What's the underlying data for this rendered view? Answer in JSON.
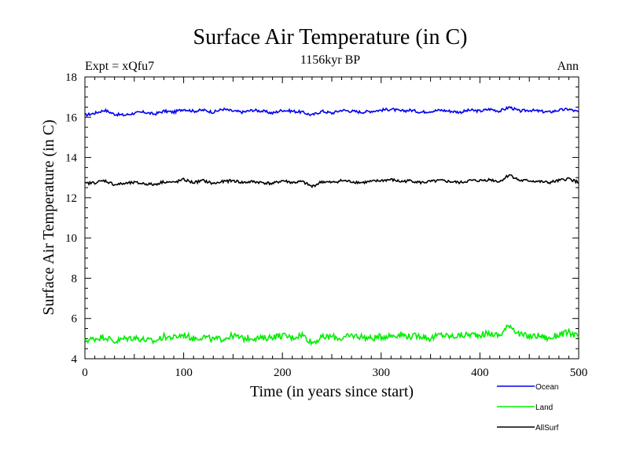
{
  "chart_data": {
    "type": "line",
    "title": "Surface Air Temperature (in C)",
    "subtitle": "1156kyr BP",
    "annotation_left": "Expt = xQfu7",
    "annotation_right": "Ann",
    "xlabel": "Time (in years since start)",
    "ylabel": "Surface Air Temperature (in C)",
    "xlim": [
      0,
      500
    ],
    "ylim": [
      4,
      18
    ],
    "xticks": [
      0,
      100,
      200,
      300,
      400,
      500
    ],
    "xtick_labels": [
      "0",
      "100",
      "200",
      "300",
      "400",
      "500"
    ],
    "yticks": [
      4,
      6,
      8,
      10,
      12,
      14,
      16,
      18
    ],
    "ytick_labels": [
      "4",
      "6",
      "8",
      "10",
      "12",
      "14",
      "16",
      "18"
    ],
    "grid": false,
    "legend_position": "bottom-right, below plot",
    "series": [
      {
        "name": "Ocean",
        "color": "#0000ee",
        "x": [
          0,
          10,
          20,
          30,
          40,
          50,
          60,
          70,
          80,
          90,
          100,
          110,
          120,
          130,
          140,
          150,
          160,
          170,
          180,
          190,
          200,
          210,
          220,
          230,
          240,
          250,
          260,
          270,
          280,
          290,
          300,
          310,
          320,
          330,
          340,
          350,
          360,
          370,
          380,
          390,
          400,
          410,
          420,
          430,
          440,
          450,
          460,
          470,
          480,
          490,
          500
        ],
        "values": [
          16.1,
          16.2,
          16.35,
          16.15,
          16.1,
          16.2,
          16.25,
          16.15,
          16.3,
          16.25,
          16.4,
          16.3,
          16.35,
          16.25,
          16.4,
          16.3,
          16.25,
          16.35,
          16.3,
          16.2,
          16.35,
          16.3,
          16.25,
          16.1,
          16.3,
          16.2,
          16.35,
          16.3,
          16.25,
          16.3,
          16.35,
          16.4,
          16.3,
          16.35,
          16.25,
          16.3,
          16.35,
          16.3,
          16.25,
          16.35,
          16.3,
          16.4,
          16.3,
          16.5,
          16.3,
          16.35,
          16.3,
          16.25,
          16.35,
          16.4,
          16.25
        ]
      },
      {
        "name": "Land",
        "color": "#00ee00",
        "x": [
          0,
          10,
          20,
          30,
          40,
          50,
          60,
          70,
          80,
          90,
          100,
          110,
          120,
          130,
          140,
          150,
          160,
          170,
          180,
          190,
          200,
          210,
          220,
          230,
          240,
          250,
          260,
          270,
          280,
          290,
          300,
          310,
          320,
          330,
          340,
          350,
          360,
          370,
          380,
          390,
          400,
          410,
          420,
          430,
          440,
          450,
          460,
          470,
          480,
          490,
          500
        ],
        "values": [
          4.9,
          5.0,
          5.1,
          4.85,
          5.0,
          5.05,
          4.95,
          4.85,
          5.1,
          5.05,
          5.2,
          5.0,
          5.1,
          4.95,
          5.0,
          5.15,
          5.0,
          5.05,
          5.0,
          5.1,
          5.15,
          5.05,
          5.2,
          4.8,
          5.05,
          5.1,
          5.0,
          5.15,
          5.1,
          5.0,
          5.1,
          5.15,
          5.2,
          5.1,
          5.15,
          5.0,
          5.2,
          5.1,
          5.15,
          5.2,
          5.2,
          5.25,
          5.15,
          5.7,
          5.2,
          5.1,
          5.15,
          5.0,
          5.2,
          5.3,
          5.1
        ]
      },
      {
        "name": "AllSurf",
        "color": "#000000",
        "x": [
          0,
          10,
          20,
          30,
          40,
          50,
          60,
          70,
          80,
          90,
          100,
          110,
          120,
          130,
          140,
          150,
          160,
          170,
          180,
          190,
          200,
          210,
          220,
          230,
          240,
          250,
          260,
          270,
          280,
          290,
          300,
          310,
          320,
          330,
          340,
          350,
          360,
          370,
          380,
          390,
          400,
          410,
          420,
          430,
          440,
          450,
          460,
          470,
          480,
          490,
          500
        ],
        "values": [
          12.7,
          12.75,
          12.85,
          12.65,
          12.7,
          12.75,
          12.7,
          12.65,
          12.8,
          12.75,
          12.9,
          12.75,
          12.85,
          12.7,
          12.8,
          12.85,
          12.75,
          12.8,
          12.75,
          12.7,
          12.85,
          12.75,
          12.8,
          12.55,
          12.8,
          12.75,
          12.85,
          12.8,
          12.75,
          12.8,
          12.85,
          12.9,
          12.8,
          12.85,
          12.75,
          12.8,
          12.85,
          12.8,
          12.75,
          12.85,
          12.85,
          12.9,
          12.8,
          13.15,
          12.85,
          12.85,
          12.8,
          12.75,
          12.85,
          12.95,
          12.75
        ]
      }
    ]
  }
}
